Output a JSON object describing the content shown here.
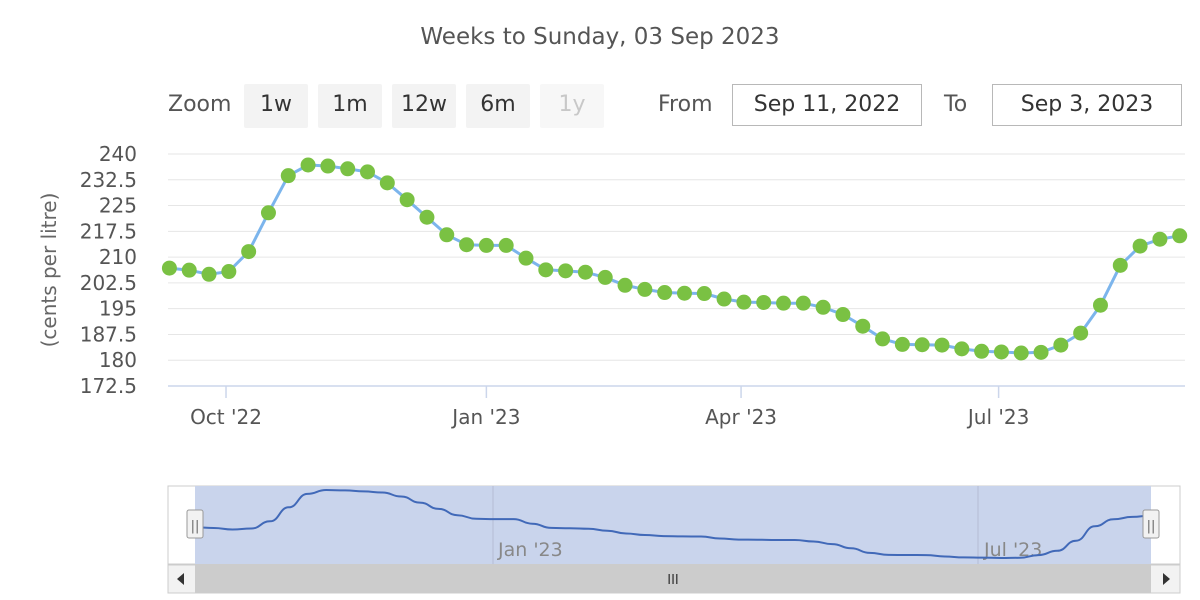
{
  "subtitle": "Weeks to Sunday, 03 Sep 2023",
  "zoom": {
    "label": "Zoom",
    "buttons": [
      "1w",
      "1m",
      "12w",
      "6m",
      "1y"
    ],
    "disabled": "1y"
  },
  "range": {
    "from_label": "From",
    "from_value": "Sep 11, 2022",
    "to_label": "To",
    "to_value": "Sep 3, 2023"
  },
  "navigator": {
    "tick_labels": [
      "Jan '23",
      "Jul '23"
    ],
    "handle_glyph": "||",
    "scroll_glyph": "III"
  },
  "colors": {
    "line": "#7cb5ec",
    "marker": "#7ac143",
    "navigator_line": "#4169b8",
    "navigator_mask": "#c9d4ec"
  },
  "chart_data": {
    "type": "line",
    "title": "",
    "ylabel": "(cents per litre)",
    "ylim": [
      172.5,
      240
    ],
    "yticks": [
      "240",
      "232.5",
      "225",
      "217.5",
      "210",
      "202.5",
      "195",
      "187.5",
      "180",
      "172.5"
    ],
    "xticks": [
      "Oct '22",
      "Jan '23",
      "Apr '23",
      "Jul '23"
    ],
    "x": [
      "2022-09-11",
      "2022-09-18",
      "2022-09-25",
      "2022-10-02",
      "2022-10-09",
      "2022-10-16",
      "2022-10-23",
      "2022-10-30",
      "2022-11-06",
      "2022-11-13",
      "2022-11-20",
      "2022-11-27",
      "2022-12-04",
      "2022-12-11",
      "2022-12-18",
      "2022-12-25",
      "2023-01-01",
      "2023-01-08",
      "2023-01-15",
      "2023-01-22",
      "2023-01-29",
      "2023-02-05",
      "2023-02-12",
      "2023-02-19",
      "2023-02-26",
      "2023-03-05",
      "2023-03-12",
      "2023-03-19",
      "2023-03-26",
      "2023-04-02",
      "2023-04-09",
      "2023-04-16",
      "2023-04-23",
      "2023-04-30",
      "2023-05-07",
      "2023-05-14",
      "2023-05-21",
      "2023-05-28",
      "2023-06-04",
      "2023-06-11",
      "2023-06-18",
      "2023-06-25",
      "2023-07-02",
      "2023-07-09",
      "2023-07-16",
      "2023-07-23",
      "2023-07-30",
      "2023-08-06",
      "2023-08-13",
      "2023-08-20",
      "2023-08-27",
      "2023-09-03"
    ],
    "series": [
      {
        "name": "",
        "values": [
          206.8,
          206.2,
          205,
          205.8,
          211.6,
          222.9,
          233.7,
          236.8,
          236.5,
          235.7,
          234.8,
          231.6,
          226.7,
          221.6,
          216.5,
          213.6,
          213.4,
          213.4,
          209.7,
          206.3,
          206,
          205.6,
          204.1,
          201.8,
          200.6,
          199.7,
          199.5,
          199.4,
          197.8,
          196.9,
          196.8,
          196.6,
          196.6,
          195.4,
          193.3,
          189.9,
          186.2,
          184.6,
          184.5,
          184.4,
          183.3,
          182.6,
          182.4,
          182.1,
          182.3,
          184.4,
          187.9,
          196,
          207.6,
          213.2,
          215.2,
          216.2
        ]
      }
    ]
  }
}
